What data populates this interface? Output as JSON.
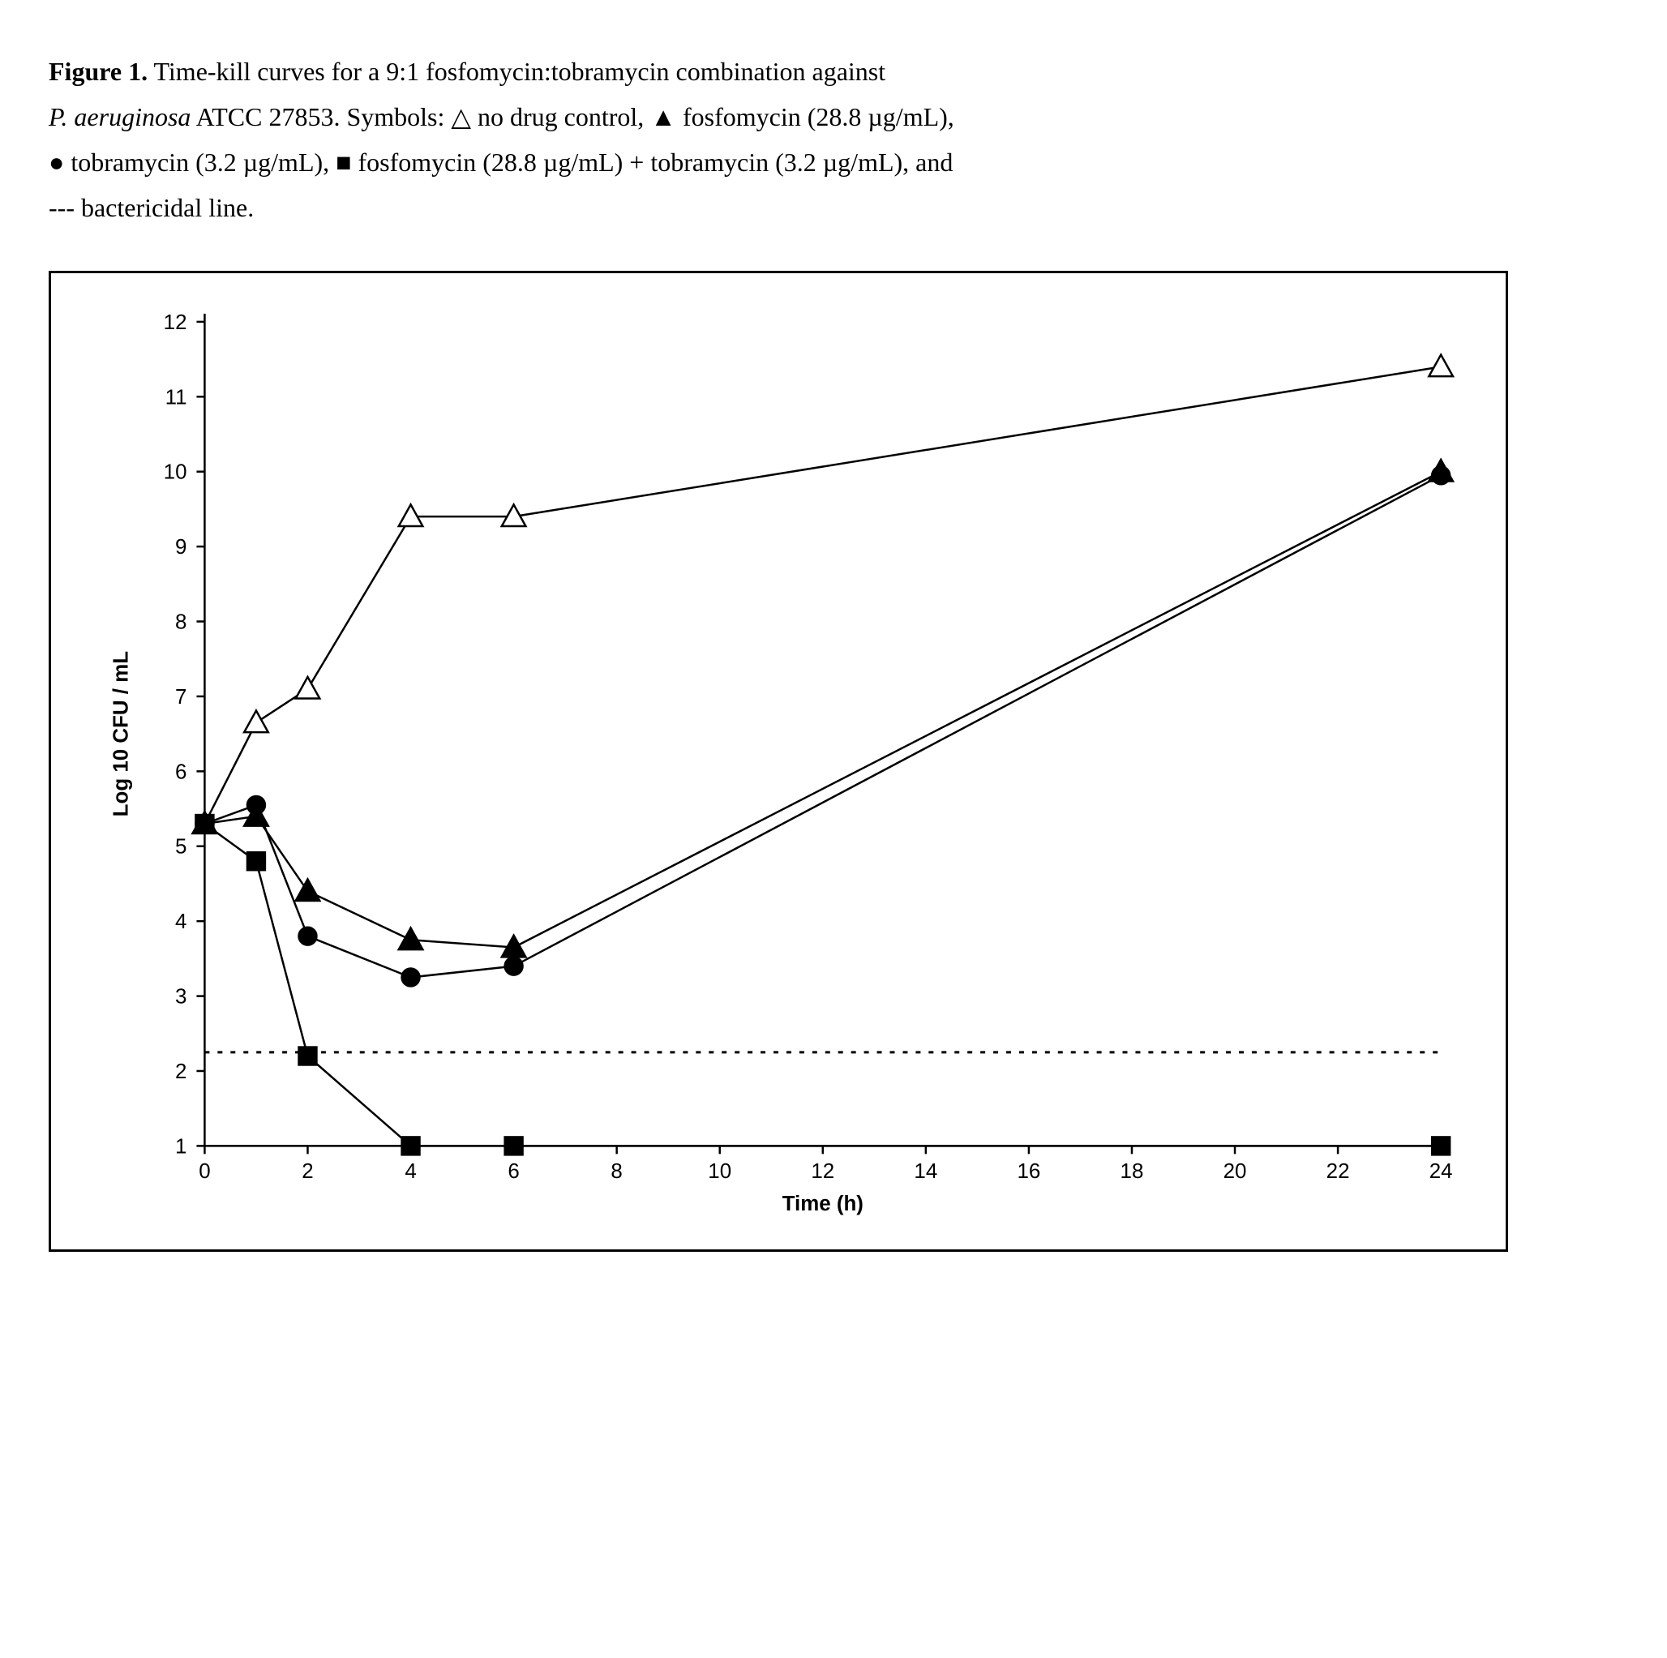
{
  "caption": {
    "prefix_bold": "Figure 1.",
    "line1_a": "  Time-kill curves for a 9:1 fosfomycin:tobramycin combination against",
    "line2_italic": "P. aeruginosa",
    "line2_rest": " ATCC 27853.  Symbols: ",
    "sym_no_drug": "△",
    "txt_no_drug": " no drug control,  ",
    "sym_fosfo": "▲",
    "txt_fosfo": "  fosfomycin (28.8 µg/mL),",
    "sym_tobra": "●",
    "txt_tobra": " tobramycin (3.2 µg/mL),  ",
    "sym_combo": "■",
    "txt_combo": "  fosfomycin (28.8 µg/mL) + tobramycin (3.2 µg/mL), and",
    "line4": "--- bactericidal line."
  },
  "chart": {
    "type": "line",
    "background_color": "#ffffff",
    "axis_color": "#000000",
    "x": {
      "label": "Time (h)",
      "min": 0,
      "max": 24,
      "ticks": [
        0,
        2,
        4,
        6,
        8,
        10,
        12,
        14,
        16,
        18,
        20,
        22,
        24
      ],
      "label_fontsize": 26
    },
    "y": {
      "label": "Log 10 CFU / mL",
      "min": 1,
      "max": 12,
      "ticks": [
        1,
        2,
        3,
        4,
        5,
        6,
        7,
        8,
        9,
        10,
        11,
        12
      ],
      "label_fontsize": 26
    },
    "bactericidal_line": {
      "y": 2.25,
      "x_start": 0,
      "x_end": 24,
      "color": "#000000",
      "dash": "6,10",
      "width": 3
    },
    "line_width": 2.5,
    "marker_size": 11,
    "marker_stroke": 2.5,
    "series": [
      {
        "name": "no-drug-control",
        "marker": "triangle-open",
        "color": "#000000",
        "fill": "#ffffff",
        "points": [
          [
            0,
            5.3
          ],
          [
            1,
            6.65
          ],
          [
            2,
            7.1
          ],
          [
            4,
            9.4
          ],
          [
            6,
            9.4
          ],
          [
            24,
            11.4
          ]
        ]
      },
      {
        "name": "fosfomycin",
        "marker": "triangle-filled",
        "color": "#000000",
        "fill": "#000000",
        "points": [
          [
            0,
            5.3
          ],
          [
            1,
            5.4
          ],
          [
            2,
            4.4
          ],
          [
            4,
            3.75
          ],
          [
            6,
            3.65
          ],
          [
            24,
            10.0
          ]
        ]
      },
      {
        "name": "tobramycin",
        "marker": "circle-filled",
        "color": "#000000",
        "fill": "#000000",
        "points": [
          [
            0,
            5.3
          ],
          [
            1,
            5.55
          ],
          [
            2,
            3.8
          ],
          [
            4,
            3.25
          ],
          [
            6,
            3.4
          ],
          [
            24,
            9.95
          ]
        ]
      },
      {
        "name": "combination",
        "marker": "square-filled",
        "color": "#000000",
        "fill": "#000000",
        "points": [
          [
            0,
            5.3
          ],
          [
            1,
            4.8
          ],
          [
            2,
            2.2
          ],
          [
            4,
            1.0
          ],
          [
            6,
            1.0
          ],
          [
            24,
            1.0
          ]
        ]
      }
    ]
  }
}
